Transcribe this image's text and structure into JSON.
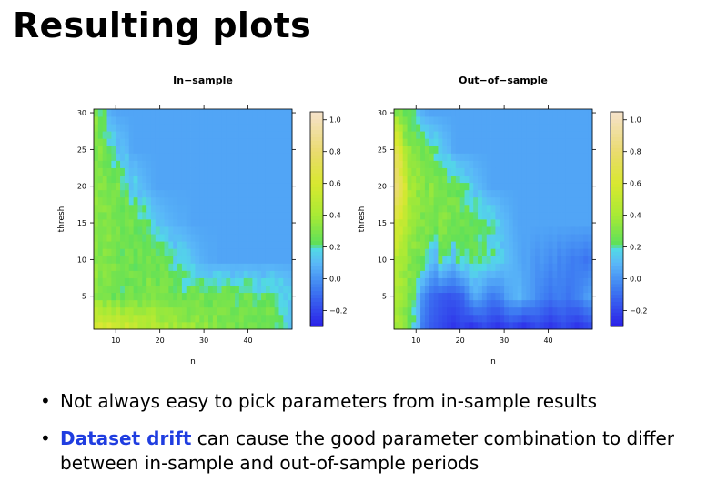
{
  "slide": {
    "title": "Resulting plots",
    "bullets": [
      {
        "highlight": "",
        "text": "Not always easy to pick parameters from in-sample results"
      },
      {
        "highlight": "Dataset drift",
        "text": " can cause the good parameter combination to differ between in-sample and out-of-sample periods"
      }
    ]
  },
  "chart_data": [
    {
      "type": "heatmap",
      "title": "In−sample",
      "xlabel": "n",
      "ylabel": "thresh",
      "xlim": [
        5,
        50
      ],
      "ylim": [
        1,
        31
      ],
      "xticks": [
        10,
        20,
        30,
        40
      ],
      "yticks": [
        5,
        10,
        15,
        20,
        25,
        30
      ],
      "colorbar": {
        "ticks": [
          1.0,
          0.8,
          0.6,
          0.4,
          0.2,
          0.0,
          -0.2
        ],
        "tick_labels": [
          "1.0",
          "0.8",
          "0.6",
          "0.4",
          "0.2",
          "0.0",
          "−0.2"
        ],
        "range": [
          -0.3,
          1.05
        ]
      },
      "colorscale": [
        {
          "v": -0.3,
          "c": "#2a1fe8"
        },
        {
          "v": -0.05,
          "c": "#3f80f2"
        },
        {
          "v": 0.1,
          "c": "#5ab8f8"
        },
        {
          "v": 0.19,
          "c": "#52d9e6"
        },
        {
          "v": 0.22,
          "c": "#5de05a"
        },
        {
          "v": 0.4,
          "c": "#a8ea35"
        },
        {
          "v": 0.6,
          "c": "#d8e830"
        },
        {
          "v": 0.8,
          "c": "#eadb6e"
        },
        {
          "v": 1.05,
          "c": "#f6e2cc"
        }
      ],
      "grid": "rows: thresh 1–30 (30 rows), cols: n 5–49 (45 cols)",
      "values_by_row": {
        "30": "0.32 0.18 0.22 0.08 0.06 0.05 0.05 0.05 0.05 0.05 0.05 0.05 0.05 0.05 0.05 0.05 0.05 0.05 0.05 0.05 0.05 0.05 0.05 0.05 0.05 0.05 0.05 0.05 0.05 0.05 0.05 0.05 0.05 0.05 0.05 0.05 0.05 0.05 0.05 0.05 0.05 0.05 0.05 0.05 0.05",
        "25": "0.30 0.32 0.25 0.22 0.20 0.14 0.12 0.10 0.06 0.05 0.05 0.05 0.05 0.05 0.05 0.05 0.05 0.05 0.05 0.05 0.05 0.05 0.05 0.05 0.05 0.05 0.05 0.05 0.05 0.05 0.05 0.05 0.05 0.05 0.05 0.05 0.05 0.05 0.05 0.05 0.05 0.05 0.05 0.05 0.05",
        "20": "0.34 0.30 0.32 0.30 0.26 0.30 0.24 0.22 0.14 0.18 0.12 0.10 0.08 0.06 0.05 0.05 0.05 0.05 0.05 0.05 0.05 0.05 0.05 0.05 0.05 0.05 0.05 0.05 0.05 0.05 0.05 0.05 0.05 0.05 0.05 0.05 0.05 0.05 0.05 0.05 0.05 0.05 0.05 0.05 0.05",
        "15": "0.33 0.32 0.30 0.34 0.30 0.28 0.26 0.30 0.28 0.25 0.22 0.24 0.20 0.16 0.14 0.12 0.10 0.09 0.08 0.07 0.07 0.06 0.05 0.05 0.05 0.05 0.05 0.05 0.05 0.05 0.05 0.05 0.05 0.05 0.05 0.05 0.05 0.05 0.05 0.05 0.05 0.05 0.05 0.05 0.05",
        "10": "0.34 0.30 0.32 0.28 0.30 0.26 0.24 0.28 0.26 0.24 0.28 0.26 0.30 0.28 0.26 0.28 0.24 0.22 0.18 0.20 0.16 0.14 0.12 0.10 0.08 0.07 0.06 0.06 0.05 0.05 0.05 0.05 0.05 0.05 0.05 0.05 0.05 0.05 0.05 0.05 0.05 0.05 0.05 0.05 0.05",
        "5": "0.35 0.32 0.28 0.30 0.26 0.28 0.24 0.26 0.30 0.28 0.26 0.28 0.30 0.28 0.26 0.28 0.30 0.28 0.26 0.28 0.24 0.26 0.28 0.30 0.28 0.26 0.24 0.26 0.28 0.30 0.28 0.26 0.24 0.26 0.28 0.26 0.24 0.22 0.24 0.26 0.24 0.22 0.20 0.18 0.16",
        "1": "0.58 0.62 0.55 0.60 0.52 0.56 0.50 0.54 0.48 0.50 0.46 0.48 0.44 0.46 0.42 0.40 0.42 0.38 0.40 0.36 0.38 0.34 0.36 0.34 0.32 0.34 0.30 0.32 0.30 0.28 0.30 0.28 0.26 0.28 0.26 0.28 0.26 0.24 0.26 0.28 0.26 0.24 0.20 0.16 0.12"
      },
      "model": {
        "kind": "in_sample"
      }
    },
    {
      "type": "heatmap",
      "title": "Out−of−sample",
      "xlabel": "n",
      "ylabel": "thresh",
      "xlim": [
        5,
        50
      ],
      "ylim": [
        1,
        31
      ],
      "xticks": [
        10,
        20,
        30,
        40
      ],
      "yticks": [
        5,
        10,
        15,
        20,
        25,
        30
      ],
      "colorbar": {
        "ticks": [
          1.0,
          0.8,
          0.6,
          0.4,
          0.2,
          0.0,
          -0.2
        ],
        "tick_labels": [
          "1.0",
          "0.8",
          "0.6",
          "0.4",
          "0.2",
          "0.0",
          "−0.2"
        ],
        "range": [
          -0.3,
          1.05
        ]
      },
      "colorscale": [
        {
          "v": -0.3,
          "c": "#2a1fe8"
        },
        {
          "v": -0.05,
          "c": "#3f80f2"
        },
        {
          "v": 0.1,
          "c": "#5ab8f8"
        },
        {
          "v": 0.19,
          "c": "#52d9e6"
        },
        {
          "v": 0.22,
          "c": "#5de05a"
        },
        {
          "v": 0.4,
          "c": "#a8ea35"
        },
        {
          "v": 0.6,
          "c": "#d8e830"
        },
        {
          "v": 0.8,
          "c": "#eadb6e"
        },
        {
          "v": 1.05,
          "c": "#f6e2cc"
        }
      ],
      "grid": "rows: thresh 1–30 (30 rows), cols: n 5–49 (45 cols)",
      "values_by_row": {
        "30": "0.32 0.28 0.24 0.22 0.18 0.12 0.08 0.06 0.05 0.05 0.05 0.05 0.05 0.05 0.05 0.05 0.05 0.05 0.05 0.05 0.05 0.05 0.05 0.05 0.05 0.05 0.05 0.05 0.05 0.05 0.05 0.05 0.05 0.05 0.05 0.05 0.05 0.05 0.05 0.05 0.05 0.05 0.05 0.05 0.05",
        "25": "0.70 0.60 0.40 0.34 0.30 0.32 0.28 0.26 0.24 0.20 0.16 0.12 0.10 0.06 0.05 0.05 0.05 0.05 0.05 0.05 0.05 0.05 0.05 0.05 0.05 0.05 0.05 0.05 0.05 0.05 0.05 0.05 0.05 0.05 0.05 0.05 0.05 0.05 0.05 0.05 0.05 0.05 0.05 0.05 0.05",
        "20": "0.80 0.70 0.58 0.40 0.36 0.34 0.32 0.30 0.34 0.30 0.28 0.30 0.26 0.28 0.24 0.22 0.20 0.16 0.12 0.10 0.08 0.06 0.05 0.05 0.05 0.05 0.05 0.05 0.05 0.05 0.05 0.05 0.05 0.05 0.05 0.05 0.05 0.05 0.05 0.05 0.05 0.05 0.05 0.05 0.05",
        "15": "0.60 0.55 0.48 0.40 0.36 0.34 0.30 0.32 0.30 0.28 0.30 0.32 0.30 0.28 0.30 0.26 0.28 0.24 0.26 0.24 0.22 0.20 0.18 0.16 0.12 0.10 0.08 0.06 0.05 0.05 0.05 0.05 0.05 0.05 0.05 0.05 0.05 0.05 0.05 0.05 0.05 0.05 0.05 0.05 0.05",
        "10": "0.45 0.40 0.36 0.32 0.30 0.28 0.26 0.20 0.14 0.10 0.24 0.20 0.16 0.12 0.18 0.22 0.20 0.26 0.24 0.22 0.20 0.18 0.20 0.16 0.14 0.12 0.10 0.08 0.06 0.04 0.05 0.02 0.00 0.02 0.00 -0.02 0.00 -0.04 -0.02 -0.04 -0.06 -0.05 -0.06 -0.08 -0.06",
        "5": "0.42 0.38 0.34 0.30 0.26 0.10 0.00 -0.05 -0.10 -0.12 -0.14 -0.15 -0.16 -0.15 -0.14 -0.12 -0.05 0.02 0.06 0.04 0.00 -0.04 -0.06 -0.04 -0.02 0.04 0.06 0.08 0.10 0.06 0.04 0.02 -0.02 -0.04 -0.06 -0.08 -0.06 -0.05 -0.06 -0.08 -0.06 -0.04 -0.02 0.02 0.04",
        "1": "0.40 0.36 0.30 0.24 0.18 0.10 -0.06 -0.10 -0.14 -0.16 -0.18 -0.20 -0.22 -0.24 -0.22 -0.20 -0.22 -0.24 -0.22 -0.20 -0.18 -0.20 -0.22 -0.24 -0.22 -0.20 -0.18 -0.20 -0.22 -0.24 -0.22 -0.20 -0.18 -0.20 -0.22 -0.24 -0.22 -0.20 -0.18 -0.20 -0.22 -0.24 -0.22 -0.20 -0.18"
      },
      "model": {
        "kind": "out_sample"
      }
    }
  ]
}
